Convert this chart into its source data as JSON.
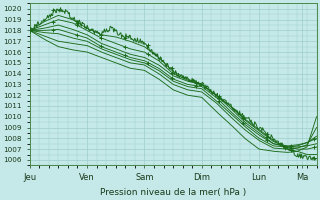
{
  "xlabel": "Pression niveau de la mer( hPa )",
  "ylim": [
    1005.5,
    1020.5
  ],
  "yticks": [
    1006,
    1007,
    1008,
    1009,
    1010,
    1011,
    1012,
    1013,
    1014,
    1015,
    1016,
    1017,
    1018,
    1019,
    1020
  ],
  "xtick_labels": [
    "Jeu",
    "Ven",
    "Sam",
    "Dim",
    "Lun",
    "Ma"
  ],
  "xtick_positions": [
    0,
    24,
    48,
    72,
    96,
    114
  ],
  "xlim": [
    0,
    120
  ],
  "background_color": "#c5e8e8",
  "grid_color": "#9ecece",
  "line_color": "#1a6b1a",
  "lines": [
    {
      "pts": [
        [
          0,
          1018.0
        ],
        [
          3,
          1018.5
        ],
        [
          6,
          1019.0
        ],
        [
          9,
          1019.5
        ],
        [
          12,
          1020.0
        ],
        [
          15,
          1019.7
        ],
        [
          18,
          1019.2
        ],
        [
          20,
          1018.8
        ],
        [
          22,
          1018.6
        ],
        [
          24,
          1018.3
        ],
        [
          26,
          1018.0
        ],
        [
          28,
          1017.8
        ],
        [
          30,
          1017.8
        ],
        [
          32,
          1018.0
        ],
        [
          34,
          1018.2
        ],
        [
          36,
          1017.9
        ],
        [
          38,
          1017.6
        ],
        [
          40,
          1017.5
        ],
        [
          42,
          1017.3
        ],
        [
          44,
          1017.2
        ],
        [
          46,
          1017.0
        ],
        [
          48,
          1016.8
        ],
        [
          54,
          1015.5
        ],
        [
          60,
          1014.2
        ],
        [
          66,
          1013.5
        ],
        [
          72,
          1013.0
        ],
        [
          78,
          1012.0
        ],
        [
          84,
          1011.0
        ],
        [
          90,
          1010.0
        ],
        [
          96,
          1009.0
        ],
        [
          102,
          1008.0
        ],
        [
          108,
          1007.0
        ],
        [
          112,
          1006.5
        ],
        [
          116,
          1006.2
        ],
        [
          120,
          1006.0
        ]
      ],
      "noisy": true,
      "markers": true
    },
    {
      "pts": [
        [
          0,
          1018.0
        ],
        [
          6,
          1018.8
        ],
        [
          12,
          1019.4
        ],
        [
          18,
          1019.0
        ],
        [
          24,
          1018.2
        ],
        [
          30,
          1017.6
        ],
        [
          36,
          1017.4
        ],
        [
          42,
          1017.0
        ],
        [
          48,
          1016.5
        ],
        [
          54,
          1015.5
        ],
        [
          60,
          1014.2
        ],
        [
          66,
          1013.5
        ],
        [
          72,
          1013.0
        ],
        [
          78,
          1012.0
        ],
        [
          84,
          1011.0
        ],
        [
          90,
          1009.8
        ],
        [
          96,
          1008.8
        ],
        [
          102,
          1007.8
        ],
        [
          108,
          1007.0
        ],
        [
          112,
          1006.8
        ],
        [
          116,
          1006.5
        ],
        [
          120,
          1006.5
        ]
      ],
      "noisy": false,
      "markers": false
    },
    {
      "pts": [
        [
          0,
          1018.0
        ],
        [
          6,
          1018.5
        ],
        [
          12,
          1019.0
        ],
        [
          18,
          1018.7
        ],
        [
          24,
          1018.0
        ],
        [
          30,
          1017.3
        ],
        [
          36,
          1016.8
        ],
        [
          42,
          1016.3
        ],
        [
          48,
          1016.0
        ],
        [
          54,
          1015.2
        ],
        [
          60,
          1014.0
        ],
        [
          66,
          1013.4
        ],
        [
          72,
          1013.0
        ],
        [
          78,
          1012.0
        ],
        [
          84,
          1011.0
        ],
        [
          90,
          1009.7
        ],
        [
          96,
          1008.7
        ],
        [
          102,
          1007.7
        ],
        [
          108,
          1007.2
        ],
        [
          112,
          1007.0
        ],
        [
          116,
          1007.0
        ],
        [
          120,
          1007.2
        ]
      ],
      "noisy": false,
      "markers": true
    },
    {
      "pts": [
        [
          0,
          1018.0
        ],
        [
          6,
          1018.2
        ],
        [
          12,
          1018.5
        ],
        [
          18,
          1018.1
        ],
        [
          24,
          1017.6
        ],
        [
          30,
          1016.8
        ],
        [
          36,
          1016.3
        ],
        [
          42,
          1015.8
        ],
        [
          48,
          1015.5
        ],
        [
          54,
          1014.8
        ],
        [
          60,
          1013.8
        ],
        [
          66,
          1013.3
        ],
        [
          72,
          1013.0
        ],
        [
          78,
          1012.0
        ],
        [
          84,
          1010.8
        ],
        [
          90,
          1009.5
        ],
        [
          96,
          1008.5
        ],
        [
          102,
          1007.5
        ],
        [
          108,
          1007.2
        ],
        [
          112,
          1007.2
        ],
        [
          116,
          1007.3
        ],
        [
          120,
          1007.5
        ]
      ],
      "noisy": false,
      "markers": false
    },
    {
      "pts": [
        [
          0,
          1018.0
        ],
        [
          6,
          1018.0
        ],
        [
          12,
          1018.1
        ],
        [
          18,
          1017.7
        ],
        [
          24,
          1017.3
        ],
        [
          30,
          1016.5
        ],
        [
          36,
          1016.0
        ],
        [
          42,
          1015.5
        ],
        [
          48,
          1015.2
        ],
        [
          54,
          1014.5
        ],
        [
          60,
          1013.5
        ],
        [
          66,
          1013.0
        ],
        [
          72,
          1012.8
        ],
        [
          78,
          1011.8
        ],
        [
          84,
          1010.5
        ],
        [
          90,
          1009.3
        ],
        [
          96,
          1008.3
        ],
        [
          102,
          1007.5
        ],
        [
          108,
          1007.3
        ],
        [
          112,
          1007.4
        ],
        [
          116,
          1007.6
        ],
        [
          120,
          1008.0
        ]
      ],
      "noisy": false,
      "markers": true
    },
    {
      "pts": [
        [
          0,
          1018.0
        ],
        [
          6,
          1017.8
        ],
        [
          12,
          1017.7
        ],
        [
          18,
          1017.3
        ],
        [
          24,
          1017.0
        ],
        [
          30,
          1016.3
        ],
        [
          36,
          1015.8
        ],
        [
          42,
          1015.3
        ],
        [
          48,
          1015.0
        ],
        [
          54,
          1014.3
        ],
        [
          60,
          1013.3
        ],
        [
          66,
          1012.8
        ],
        [
          72,
          1012.6
        ],
        [
          78,
          1011.5
        ],
        [
          84,
          1010.3
        ],
        [
          90,
          1009.1
        ],
        [
          96,
          1008.0
        ],
        [
          102,
          1007.3
        ],
        [
          108,
          1007.2
        ],
        [
          112,
          1007.3
        ],
        [
          116,
          1007.6
        ],
        [
          120,
          1008.2
        ]
      ],
      "noisy": false,
      "markers": false
    },
    {
      "pts": [
        [
          0,
          1018.0
        ],
        [
          6,
          1017.5
        ],
        [
          12,
          1017.0
        ],
        [
          18,
          1016.8
        ],
        [
          24,
          1016.6
        ],
        [
          30,
          1016.0
        ],
        [
          36,
          1015.5
        ],
        [
          42,
          1015.0
        ],
        [
          48,
          1014.8
        ],
        [
          54,
          1014.0
        ],
        [
          60,
          1013.0
        ],
        [
          66,
          1012.5
        ],
        [
          72,
          1012.3
        ],
        [
          78,
          1011.3
        ],
        [
          84,
          1010.0
        ],
        [
          90,
          1008.8
        ],
        [
          96,
          1007.8
        ],
        [
          102,
          1007.1
        ],
        [
          108,
          1007.0
        ],
        [
          112,
          1007.1
        ],
        [
          116,
          1007.4
        ],
        [
          120,
          1009.0
        ]
      ],
      "noisy": false,
      "markers": false
    },
    {
      "pts": [
        [
          0,
          1018.0
        ],
        [
          6,
          1017.2
        ],
        [
          12,
          1016.5
        ],
        [
          18,
          1016.2
        ],
        [
          24,
          1016.0
        ],
        [
          30,
          1015.5
        ],
        [
          36,
          1015.0
        ],
        [
          42,
          1014.5
        ],
        [
          48,
          1014.3
        ],
        [
          54,
          1013.5
        ],
        [
          60,
          1012.5
        ],
        [
          66,
          1012.0
        ],
        [
          72,
          1011.8
        ],
        [
          78,
          1010.5
        ],
        [
          84,
          1009.3
        ],
        [
          90,
          1008.0
        ],
        [
          96,
          1007.0
        ],
        [
          102,
          1006.8
        ],
        [
          108,
          1006.7
        ],
        [
          112,
          1006.8
        ],
        [
          116,
          1007.2
        ],
        [
          120,
          1010.0
        ]
      ],
      "noisy": false,
      "markers": false
    }
  ]
}
